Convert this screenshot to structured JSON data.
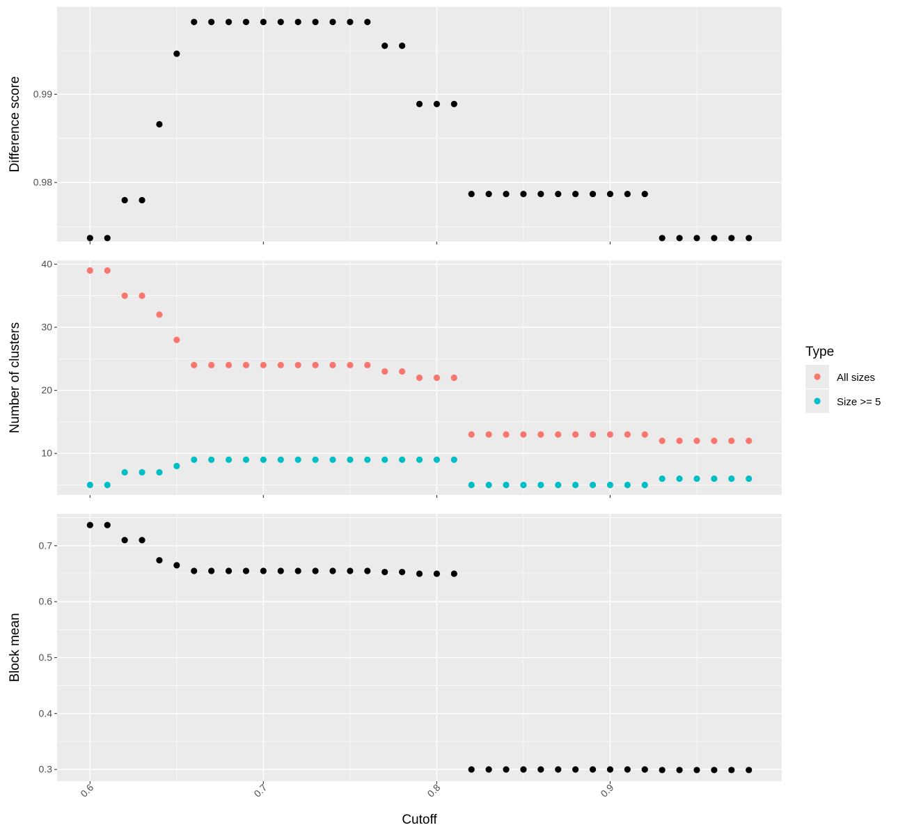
{
  "chart_data": [
    {
      "type": "scatter",
      "ylabel": "Difference score",
      "xlim": [
        0.6,
        0.98
      ],
      "ylim": [
        0.9733,
        0.9999
      ],
      "yticks": [
        0.98,
        0.99
      ],
      "ytick_labels": [
        "0.98",
        "0.99"
      ],
      "series": [
        {
          "color": "#000000",
          "x": [
            0.6,
            0.61,
            0.62,
            0.63,
            0.64,
            0.65,
            0.66,
            0.67,
            0.68,
            0.69,
            0.7,
            0.71,
            0.72,
            0.73,
            0.74,
            0.75,
            0.76,
            0.77,
            0.78,
            0.79,
            0.8,
            0.81,
            0.82,
            0.83,
            0.84,
            0.85,
            0.86,
            0.87,
            0.88,
            0.89,
            0.9,
            0.91,
            0.92,
            0.93,
            0.94,
            0.95,
            0.96,
            0.97,
            0.98
          ],
          "y": [
            0.9737,
            0.9737,
            0.978,
            0.978,
            0.9866,
            0.9946,
            0.9982,
            0.9982,
            0.9982,
            0.9982,
            0.9982,
            0.9982,
            0.9982,
            0.9982,
            0.9982,
            0.9982,
            0.9982,
            0.9955,
            0.9955,
            0.9889,
            0.9889,
            0.9889,
            0.9787,
            0.9787,
            0.9787,
            0.9787,
            0.9787,
            0.9787,
            0.9787,
            0.9787,
            0.9787,
            0.9787,
            0.9787,
            0.9737,
            0.9737,
            0.9737,
            0.9737,
            0.9737,
            0.9737
          ]
        }
      ]
    },
    {
      "type": "scatter",
      "ylabel": "Number of clusters",
      "xlim": [
        0.6,
        0.98
      ],
      "ylim": [
        3.4,
        40.6
      ],
      "yticks": [
        10,
        20,
        30,
        40
      ],
      "ytick_labels": [
        "10",
        "20",
        "30",
        "40"
      ],
      "series": [
        {
          "name": "All sizes",
          "color": "#F8766D",
          "x": [
            0.6,
            0.61,
            0.62,
            0.63,
            0.64,
            0.65,
            0.66,
            0.67,
            0.68,
            0.69,
            0.7,
            0.71,
            0.72,
            0.73,
            0.74,
            0.75,
            0.76,
            0.77,
            0.78,
            0.79,
            0.8,
            0.81,
            0.82,
            0.83,
            0.84,
            0.85,
            0.86,
            0.87,
            0.88,
            0.89,
            0.9,
            0.91,
            0.92,
            0.93,
            0.94,
            0.95,
            0.96,
            0.97,
            0.98
          ],
          "y": [
            39,
            39,
            35,
            35,
            32,
            28,
            24,
            24,
            24,
            24,
            24,
            24,
            24,
            24,
            24,
            24,
            24,
            23,
            23,
            22,
            22,
            22,
            13,
            13,
            13,
            13,
            13,
            13,
            13,
            13,
            13,
            13,
            13,
            12,
            12,
            12,
            12,
            12,
            12
          ]
        },
        {
          "name": "Size >= 5",
          "color": "#00BFC4",
          "x": [
            0.6,
            0.61,
            0.62,
            0.63,
            0.64,
            0.65,
            0.66,
            0.67,
            0.68,
            0.69,
            0.7,
            0.71,
            0.72,
            0.73,
            0.74,
            0.75,
            0.76,
            0.77,
            0.78,
            0.79,
            0.8,
            0.81,
            0.82,
            0.83,
            0.84,
            0.85,
            0.86,
            0.87,
            0.88,
            0.89,
            0.9,
            0.91,
            0.92,
            0.93,
            0.94,
            0.95,
            0.96,
            0.97,
            0.98
          ],
          "y": [
            5,
            5,
            7,
            7,
            7,
            8,
            9,
            9,
            9,
            9,
            9,
            9,
            9,
            9,
            9,
            9,
            9,
            9,
            9,
            9,
            9,
            9,
            5,
            5,
            5,
            5,
            5,
            5,
            5,
            5,
            5,
            5,
            5,
            6,
            6,
            6,
            6,
            6,
            6
          ]
        }
      ]
    },
    {
      "type": "scatter",
      "xlabel": "Cutoff",
      "ylabel": "Block mean",
      "xlim": [
        0.6,
        0.98
      ],
      "ylim": [
        0.279,
        0.757
      ],
      "yticks": [
        0.3,
        0.4,
        0.5,
        0.6,
        0.7
      ],
      "ytick_labels": [
        "0.3",
        "0.4",
        "0.5",
        "0.6",
        "0.7"
      ],
      "series": [
        {
          "color": "#000000",
          "x": [
            0.6,
            0.61,
            0.62,
            0.63,
            0.64,
            0.65,
            0.66,
            0.67,
            0.68,
            0.69,
            0.7,
            0.71,
            0.72,
            0.73,
            0.74,
            0.75,
            0.76,
            0.77,
            0.78,
            0.79,
            0.8,
            0.81,
            0.82,
            0.83,
            0.84,
            0.85,
            0.86,
            0.87,
            0.88,
            0.89,
            0.9,
            0.91,
            0.92,
            0.93,
            0.94,
            0.95,
            0.96,
            0.97,
            0.98
          ],
          "y": [
            0.737,
            0.737,
            0.71,
            0.71,
            0.674,
            0.665,
            0.655,
            0.655,
            0.655,
            0.655,
            0.655,
            0.655,
            0.655,
            0.655,
            0.655,
            0.655,
            0.655,
            0.653,
            0.653,
            0.65,
            0.65,
            0.65,
            0.3,
            0.3,
            0.3,
            0.3,
            0.3,
            0.3,
            0.3,
            0.3,
            0.3,
            0.3,
            0.3,
            0.299,
            0.299,
            0.299,
            0.299,
            0.299,
            0.299
          ]
        }
      ]
    }
  ],
  "x_axis": {
    "title": "Cutoff",
    "ticks": [
      0.6,
      0.7,
      0.8,
      0.9
    ],
    "tick_labels": [
      "0.6",
      "0.7",
      "0.8",
      "0.9"
    ],
    "tick_label_rotation": -45
  },
  "legend": {
    "title": "Type",
    "position": "right",
    "items": [
      {
        "label": "All sizes",
        "color": "#F8766D"
      },
      {
        "label": "Size >= 5",
        "color": "#00BFC4"
      }
    ]
  },
  "style": {
    "panel_background": "#EBEBEB",
    "grid_color": "#FFFFFF",
    "axis_text_color": "#4D4D4D",
    "title_color": "#000000"
  }
}
